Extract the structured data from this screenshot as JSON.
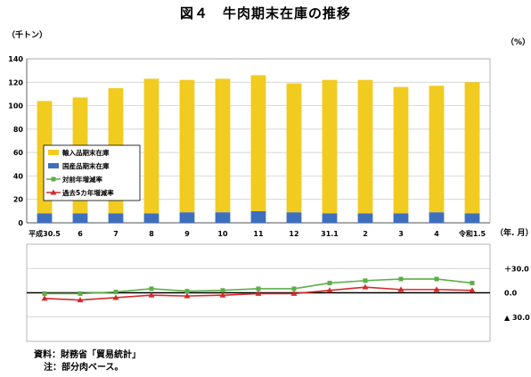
{
  "header": {
    "title": "図４　牛肉期末在庫の推移"
  },
  "units": {
    "left": "（千トン）",
    "right": "（%）",
    "x": "（年. 月）"
  },
  "footer": {
    "source": "資料：財務省「貿易統計」",
    "note": "注：部分肉ベース。"
  },
  "colors": {
    "imported": "#f2cb20",
    "domestic": "#3e6fbf",
    "yoy": "#5cae48",
    "five_year": "#d32a2a"
  },
  "chart_data": [
    {
      "type": "bar",
      "stacked": true,
      "categories": [
        "平成30.5",
        "6",
        "7",
        "8",
        "9",
        "10",
        "11",
        "12",
        "31.1",
        "2",
        "3",
        "4",
        "令和1.5"
      ],
      "series": [
        {
          "name": "国産品期末在庫",
          "values": [
            8,
            8,
            8,
            8,
            9,
            9,
            10,
            9,
            8,
            8,
            8,
            9,
            8
          ]
        },
        {
          "name": "輸入品期末在庫",
          "values": [
            96,
            99,
            107,
            115,
            113,
            114,
            116,
            110,
            114,
            114,
            108,
            108,
            112
          ]
        }
      ],
      "ylim": [
        0,
        140
      ],
      "yticks": [
        0,
        20,
        40,
        60,
        80,
        100,
        120,
        140
      ],
      "grid": true,
      "legend": "left"
    },
    {
      "type": "line",
      "categories": [
        "平成30.5",
        "6",
        "7",
        "8",
        "9",
        "10",
        "11",
        "12",
        "31.1",
        "2",
        "3",
        "4",
        "令和1.5"
      ],
      "series": [
        {
          "name": "対前年増減率",
          "values": [
            -1,
            -1,
            1,
            5,
            2,
            3,
            5,
            5,
            12,
            15,
            17,
            17,
            12
          ]
        },
        {
          "name": "過去5カ年増減率",
          "values": [
            -7,
            -9,
            -6,
            -3,
            -4,
            -3,
            -1,
            -1,
            3,
            7,
            4,
            4,
            3
          ]
        }
      ],
      "ylim": [
        -60,
        60
      ],
      "yticks": [
        30,
        0,
        -30
      ],
      "ytick_labels": [
        "＋30.0",
        "0.0",
        "▲ 30.0"
      ],
      "grid": true
    }
  ]
}
